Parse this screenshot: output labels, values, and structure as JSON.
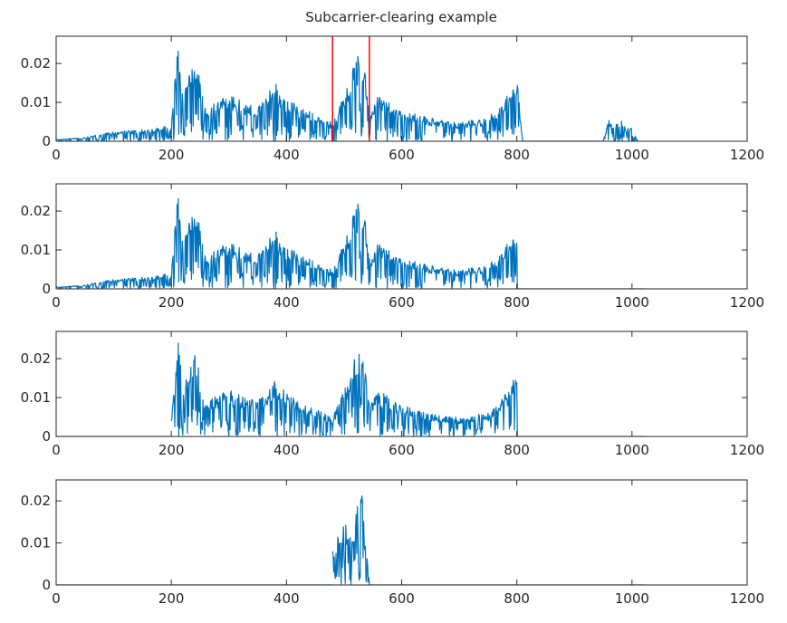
{
  "chart_data": {
    "type": "line",
    "title": "Subcarrier-clearing example",
    "series_color": "#0072BD",
    "marker_color": "#FF0000",
    "grid": false,
    "subplots": [
      {
        "name": "original-spectrum",
        "xlim": [
          0,
          1200
        ],
        "ylim": [
          0,
          0.027
        ],
        "xticks": [
          0,
          200,
          400,
          600,
          800,
          1000,
          1200
        ],
        "yticks": [
          0,
          0.01,
          0.02
        ],
        "ytick_labels": [
          "0",
          "0.01",
          "0.02"
        ],
        "markers_x": [
          480,
          544
        ],
        "segments": [
          {
            "x": [
              0,
              50,
              100,
              150,
              200,
              212,
              220,
              240,
              260,
              300,
              350,
              380,
              400,
              450,
              480,
              500,
              530,
              545,
              560,
              600,
              650,
              700,
              750,
              780,
              800,
              810
            ],
            "y": [
              0.0005,
              0.001,
              0.0025,
              0.003,
              0.004,
              0.027,
              0.012,
              0.023,
              0.009,
              0.012,
              0.009,
              0.015,
              0.011,
              0.007,
              0.005,
              0.012,
              0.025,
              0.008,
              0.012,
              0.008,
              0.006,
              0.005,
              0.006,
              0.011,
              0.017,
              0.0
            ]
          },
          {
            "x": [
              810,
              950
            ],
            "y": [
              0.0,
              0.0
            ]
          },
          {
            "x": [
              950,
              960,
              970,
              980,
              990,
              1000,
              1010
            ],
            "y": [
              0.0,
              0.006,
              0.004,
              0.006,
              0.003,
              0.004,
              0.0
            ]
          }
        ]
      },
      {
        "name": "cleared-low-band",
        "xlim": [
          0,
          1200
        ],
        "ylim": [
          0,
          0.027
        ],
        "xticks": [
          0,
          200,
          400,
          600,
          800,
          1000,
          1200
        ],
        "yticks": [
          0,
          0.01,
          0.02
        ],
        "ytick_labels": [
          "0",
          "0.01",
          "0.02"
        ],
        "markers_x": [],
        "segments": [
          {
            "x": [
              0,
              50,
              100,
              150,
              200,
              212,
              220,
              240,
              260,
              300,
              350,
              380,
              400,
              450,
              480,
              500,
              530,
              545,
              560,
              600,
              650,
              700,
              750,
              780,
              800,
              801
            ],
            "y": [
              0.0005,
              0.001,
              0.0025,
              0.003,
              0.004,
              0.027,
              0.012,
              0.023,
              0.009,
              0.012,
              0.009,
              0.015,
              0.011,
              0.007,
              0.005,
              0.012,
              0.025,
              0.008,
              0.012,
              0.008,
              0.006,
              0.005,
              0.006,
              0.011,
              0.016,
              0.0
            ]
          },
          {
            "x": [
              801,
              1024
            ],
            "y": [
              0.0,
              0.0
            ]
          }
        ]
      },
      {
        "name": "band-200-800",
        "xlim": [
          0,
          1200
        ],
        "ylim": [
          0,
          0.027
        ],
        "xticks": [
          0,
          200,
          400,
          600,
          800,
          1000,
          1200
        ],
        "yticks": [
          0,
          0.01,
          0.02
        ],
        "ytick_labels": [
          "0",
          "0.01",
          "0.02"
        ],
        "markers_x": [],
        "segments": [
          {
            "x": [
              0,
              200
            ],
            "y": [
              0.0,
              0.0
            ]
          },
          {
            "x": [
              200,
              212,
              220,
              240,
              260,
              300,
              350,
              380,
              400,
              450,
              480,
              500,
              530,
              545,
              560,
              600,
              650,
              700,
              750,
              780,
              800,
              801
            ],
            "y": [
              0.004,
              0.027,
              0.012,
              0.023,
              0.009,
              0.012,
              0.009,
              0.015,
              0.011,
              0.007,
              0.005,
              0.012,
              0.025,
              0.008,
              0.012,
              0.008,
              0.006,
              0.005,
              0.006,
              0.011,
              0.016,
              0.0
            ]
          },
          {
            "x": [
              801,
              1024
            ],
            "y": [
              0.0,
              0.0
            ]
          }
        ]
      },
      {
        "name": "band-480-544",
        "xlim": [
          0,
          1200
        ],
        "ylim": [
          0,
          0.025
        ],
        "xticks": [
          0,
          200,
          400,
          600,
          800,
          1000,
          1200
        ],
        "yticks": [
          0,
          0.01,
          0.02
        ],
        "ytick_labels": [
          "0",
          "0.01",
          "0.02"
        ],
        "markers_x": [],
        "segments": [
          {
            "x": [
              0,
              480
            ],
            "y": [
              0.0,
              0.0
            ]
          },
          {
            "x": [
              480,
              490,
              500,
              510,
              520,
              530,
              535,
              540,
              544
            ],
            "y": [
              0.008,
              0.012,
              0.017,
              0.011,
              0.016,
              0.025,
              0.013,
              0.009,
              0.0
            ]
          },
          {
            "x": [
              544,
              1024
            ],
            "y": [
              0.0,
              0.0
            ]
          }
        ]
      }
    ]
  }
}
